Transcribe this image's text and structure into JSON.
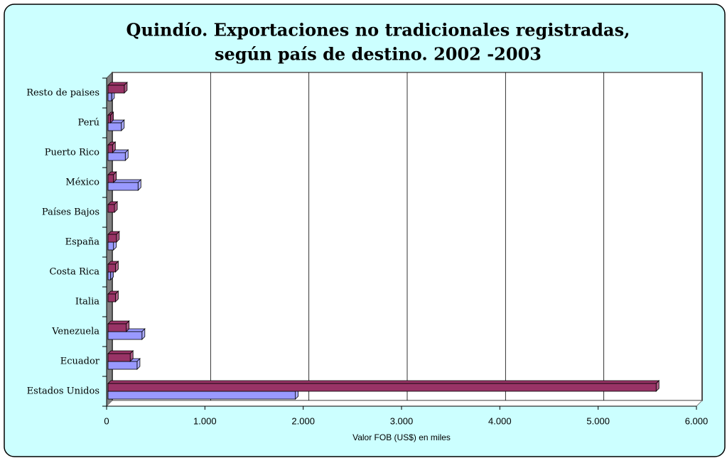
{
  "chart_data": {
    "type": "bar3d_horizontal",
    "title": "Quindío. Exportaciones no tradicionales registradas,",
    "subtitle": "según país de destino. 2002 -2003",
    "x_label": "Valor FOB (US$) en miles",
    "categories": [
      "Estados Unidos",
      "Ecuador",
      "Venezuela",
      "Italia",
      "Costa Rica",
      "España",
      "Países Bajos",
      "México",
      "Puerto Rico",
      "Perú",
      "Resto de paises"
    ],
    "series": [
      {
        "color": "#9999ff",
        "values": [
          1920,
          310,
          360,
          null,
          40,
          70,
          null,
          320,
          190,
          150,
          50
        ]
      },
      {
        "color": "#993366",
        "values": [
          5590,
          240,
          200,
          90,
          90,
          100,
          80,
          70,
          60,
          40,
          180
        ]
      }
    ],
    "xlim": [
      0,
      6000
    ],
    "xticks": [
      0,
      {
        "value": 1000,
        "label": "1.000"
      },
      {
        "value": 2000,
        "label": "2.000"
      },
      {
        "value": 3000,
        "label": "3.000"
      },
      {
        "value": 4000,
        "label": "4.000"
      },
      {
        "value": 5000,
        "label": "5.000"
      },
      {
        "value": 6000,
        "label": "6.000"
      }
    ],
    "grid": true
  }
}
